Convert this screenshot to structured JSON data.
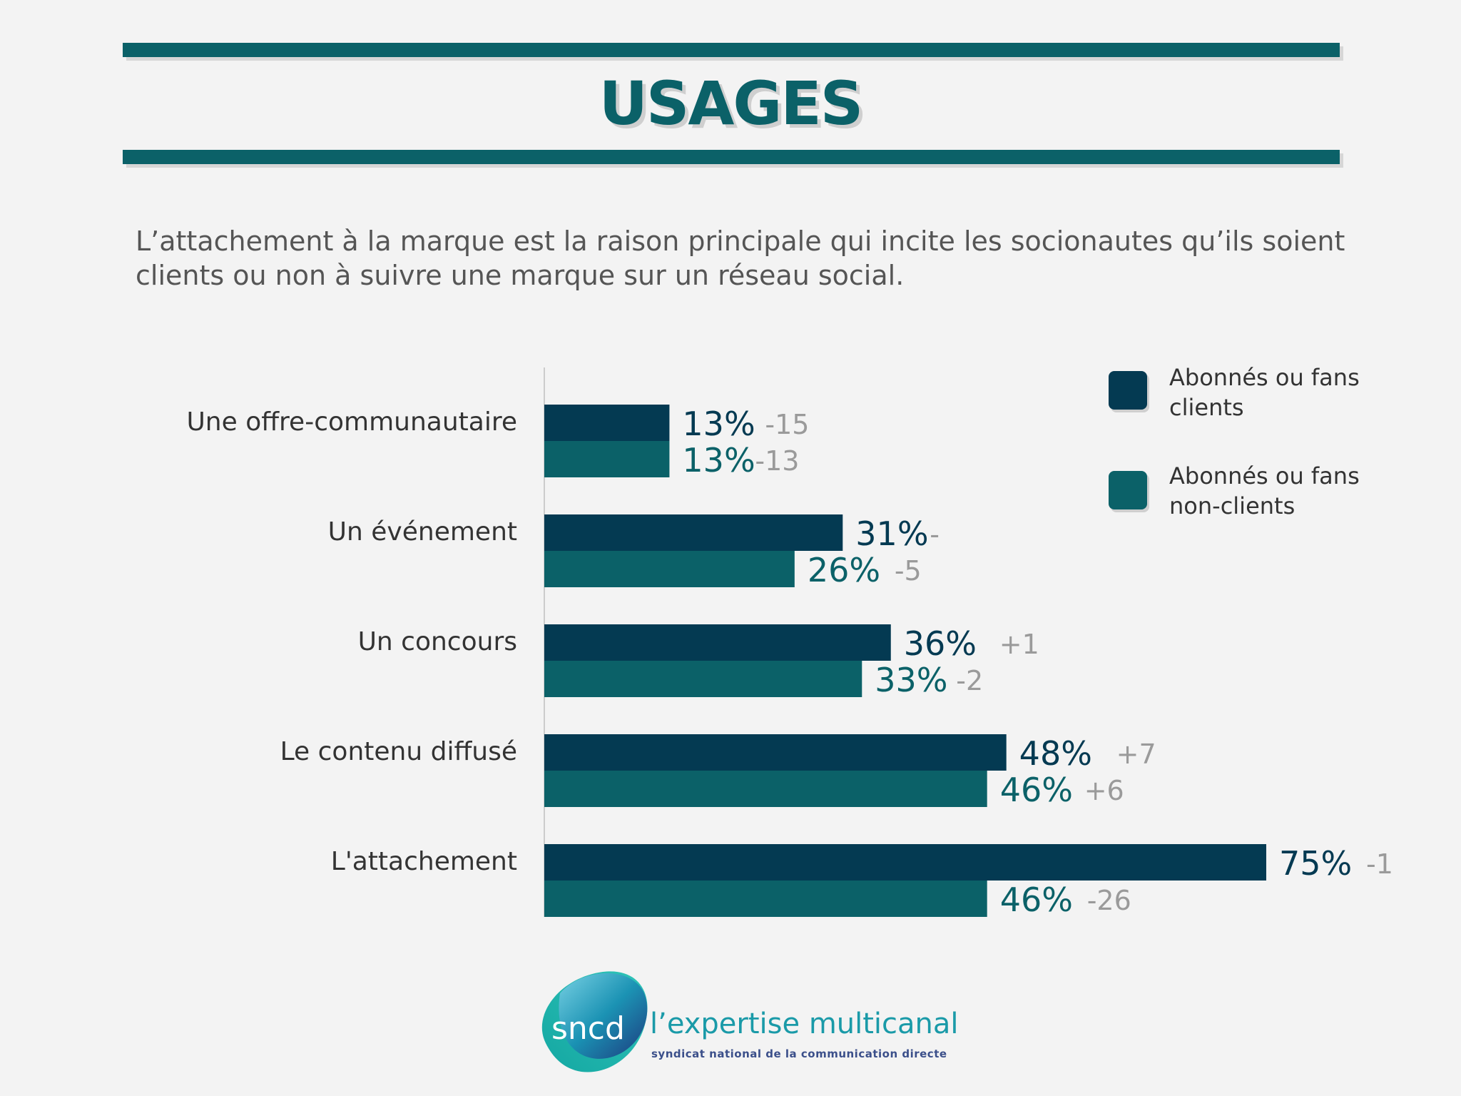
{
  "header": {
    "title": "USAGES",
    "subtitle_line1": "L’attachement à la marque est la raison principale qui incite les socionautes qu’ils soient",
    "subtitle_line2": "clients ou non à suivre une marque sur un réseau social."
  },
  "colors": {
    "clients": "#043a52",
    "non_clients": "#0b6168",
    "delta": "#9a9a9a",
    "axis": "#cccccc",
    "label": "#333333"
  },
  "chart_data": {
    "type": "bar",
    "orientation": "horizontal",
    "categories": [
      "Une offre-communautaire",
      "Un événement",
      "Un concours",
      "Le contenu diffusé",
      "L'attachement"
    ],
    "series": [
      {
        "name": "Abonnés ou fans clients",
        "values": [
          13,
          31,
          36,
          48,
          75
        ],
        "value_labels": [
          "13%",
          "31%",
          "36%",
          "48%",
          "75%"
        ],
        "delta_labels": [
          "-15",
          "-",
          "+1",
          "+7",
          "-1"
        ]
      },
      {
        "name": "Abonnés ou fans non-clients",
        "values": [
          13,
          26,
          33,
          46,
          46
        ],
        "value_labels": [
          "13%",
          "26%",
          "33%",
          "46%",
          "46%"
        ],
        "delta_labels": [
          "-13",
          "-5",
          "-2",
          "+6",
          "-26"
        ]
      }
    ],
    "xlim": [
      0,
      100
    ],
    "grid": false,
    "legend_position": "top-right"
  },
  "legend": {
    "clients_line1": "Abonnés ou fans",
    "clients_line2": "clients",
    "non_clients_line1": "Abonnés ou fans",
    "non_clients_line2": "non-clients"
  },
  "footer": {
    "logo_mark": "sncd",
    "tagline": "l’expertise multicanal",
    "org_name": "syndicat national de la communication directe"
  }
}
